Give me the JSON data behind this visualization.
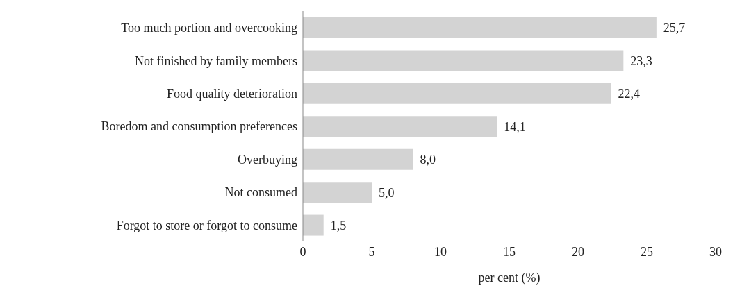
{
  "chart_data": {
    "type": "bar",
    "orientation": "horizontal",
    "xlabel": "per cent (%)",
    "categories": [
      "Too much portion and overcooking",
      "Not finished by family members",
      "Food quality deterioration",
      "Boredom and consumption preferences",
      "Overbuying",
      "Not consumed",
      "Forgot to store or forgot to consume"
    ],
    "values": [
      25.7,
      23.3,
      22.4,
      14.1,
      8.0,
      5.0,
      1.5
    ],
    "value_labels": [
      "25,7",
      "23,3",
      "22,4",
      "14,1",
      "8,0",
      "5,0",
      "1,5"
    ],
    "color": "#d3d3d3",
    "xlim": [
      0,
      30
    ],
    "xticks": [
      0,
      5,
      10,
      15,
      20,
      25,
      30
    ],
    "grid": false,
    "legend": false
  }
}
